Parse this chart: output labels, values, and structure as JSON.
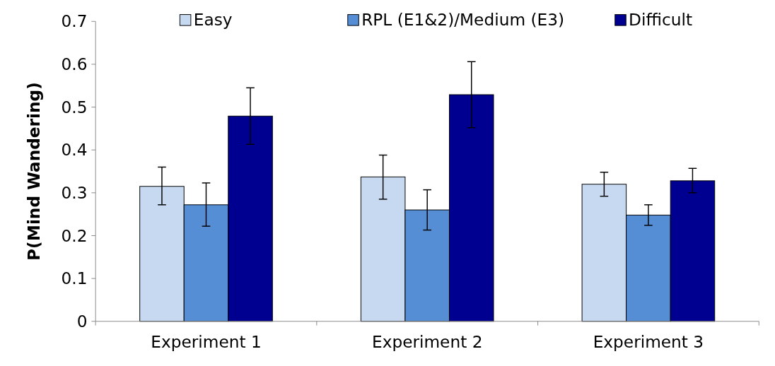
{
  "chart_data": {
    "type": "bar",
    "ylabel": "P(Mind Wandering)",
    "categories": [
      "Experiment 1",
      "Experiment 2",
      "Experiment 3"
    ],
    "series": [
      {
        "name": "Easy",
        "color": "#c6d9f1",
        "values": [
          0.315,
          0.337,
          0.32
        ],
        "errors": [
          [
            0.272,
            0.36
          ],
          [
            0.285,
            0.388
          ],
          [
            0.292,
            0.348
          ]
        ]
      },
      {
        "name": "RPL (E1&2)/Medium (E3)",
        "color": "#558ed5",
        "values": [
          0.272,
          0.26,
          0.248
        ],
        "errors": [
          [
            0.222,
            0.323
          ],
          [
            0.213,
            0.307
          ],
          [
            0.224,
            0.272
          ]
        ]
      },
      {
        "name": "Difficult",
        "color": "#000090",
        "values": [
          0.479,
          0.529,
          0.328
        ],
        "errors": [
          [
            0.413,
            0.545
          ],
          [
            0.452,
            0.606
          ],
          [
            0.3,
            0.357
          ]
        ]
      }
    ],
    "ylim": [
      0,
      0.7
    ],
    "yticks": [
      {
        "value": 0,
        "label": "0"
      },
      {
        "value": 0.1,
        "label": "0.1"
      },
      {
        "value": 0.2,
        "label": "0.2"
      },
      {
        "value": 0.3,
        "label": "0.3"
      },
      {
        "value": 0.4,
        "label": "0.4"
      },
      {
        "value": 0.5,
        "label": "0.5"
      },
      {
        "value": 0.6,
        "label": "0.6"
      },
      {
        "value": 0.7,
        "label": "0.7"
      }
    ],
    "legend": "top",
    "grid": false
  }
}
